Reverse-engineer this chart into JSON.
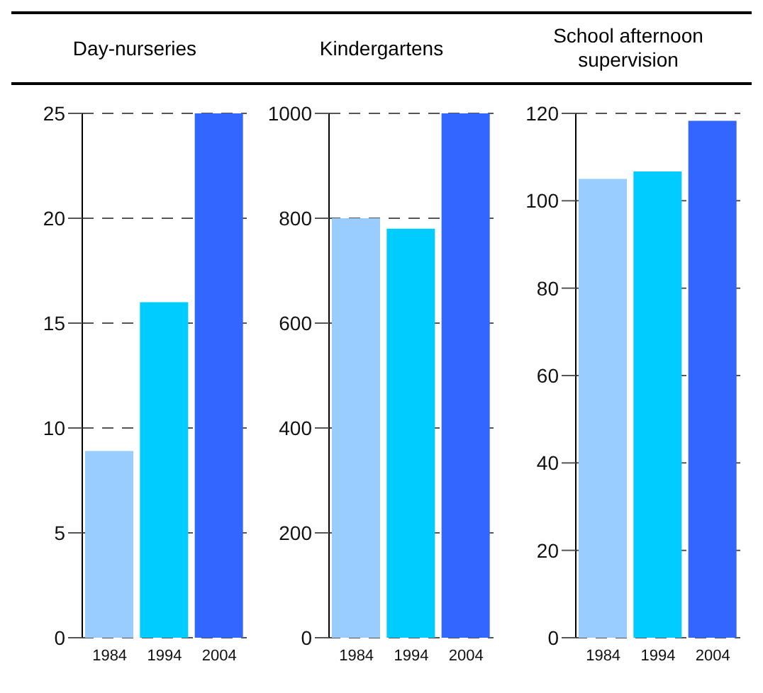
{
  "chart_data": [
    {
      "type": "bar",
      "title": "Day-nurseries",
      "categories": [
        "1984",
        "1994",
        "2004"
      ],
      "values": [
        8.9,
        16,
        25
      ],
      "colors": [
        "#99ccff",
        "#00ccff",
        "#3366ff"
      ],
      "ylim": [
        0,
        25
      ],
      "yticks": [
        0,
        5,
        10,
        15,
        20,
        25
      ],
      "grid": "y"
    },
    {
      "type": "bar",
      "title": "Kindergartens",
      "categories": [
        "1984",
        "1994",
        "2004"
      ],
      "values": [
        800,
        780,
        1000
      ],
      "colors": [
        "#99ccff",
        "#00ccff",
        "#3366ff"
      ],
      "ylim": [
        0,
        1000
      ],
      "yticks": [
        0,
        200,
        400,
        600,
        800,
        1000
      ],
      "grid": "y"
    },
    {
      "type": "bar",
      "title": "School afternoon supervision",
      "categories": [
        "1984",
        "1994",
        "2004"
      ],
      "values": [
        105,
        106.7,
        118.3
      ],
      "colors": [
        "#99ccff",
        "#00ccff",
        "#3366ff"
      ],
      "ylim": [
        0,
        120
      ],
      "yticks": [
        0,
        20,
        40,
        60,
        80,
        100,
        120
      ],
      "grid": "y"
    }
  ]
}
